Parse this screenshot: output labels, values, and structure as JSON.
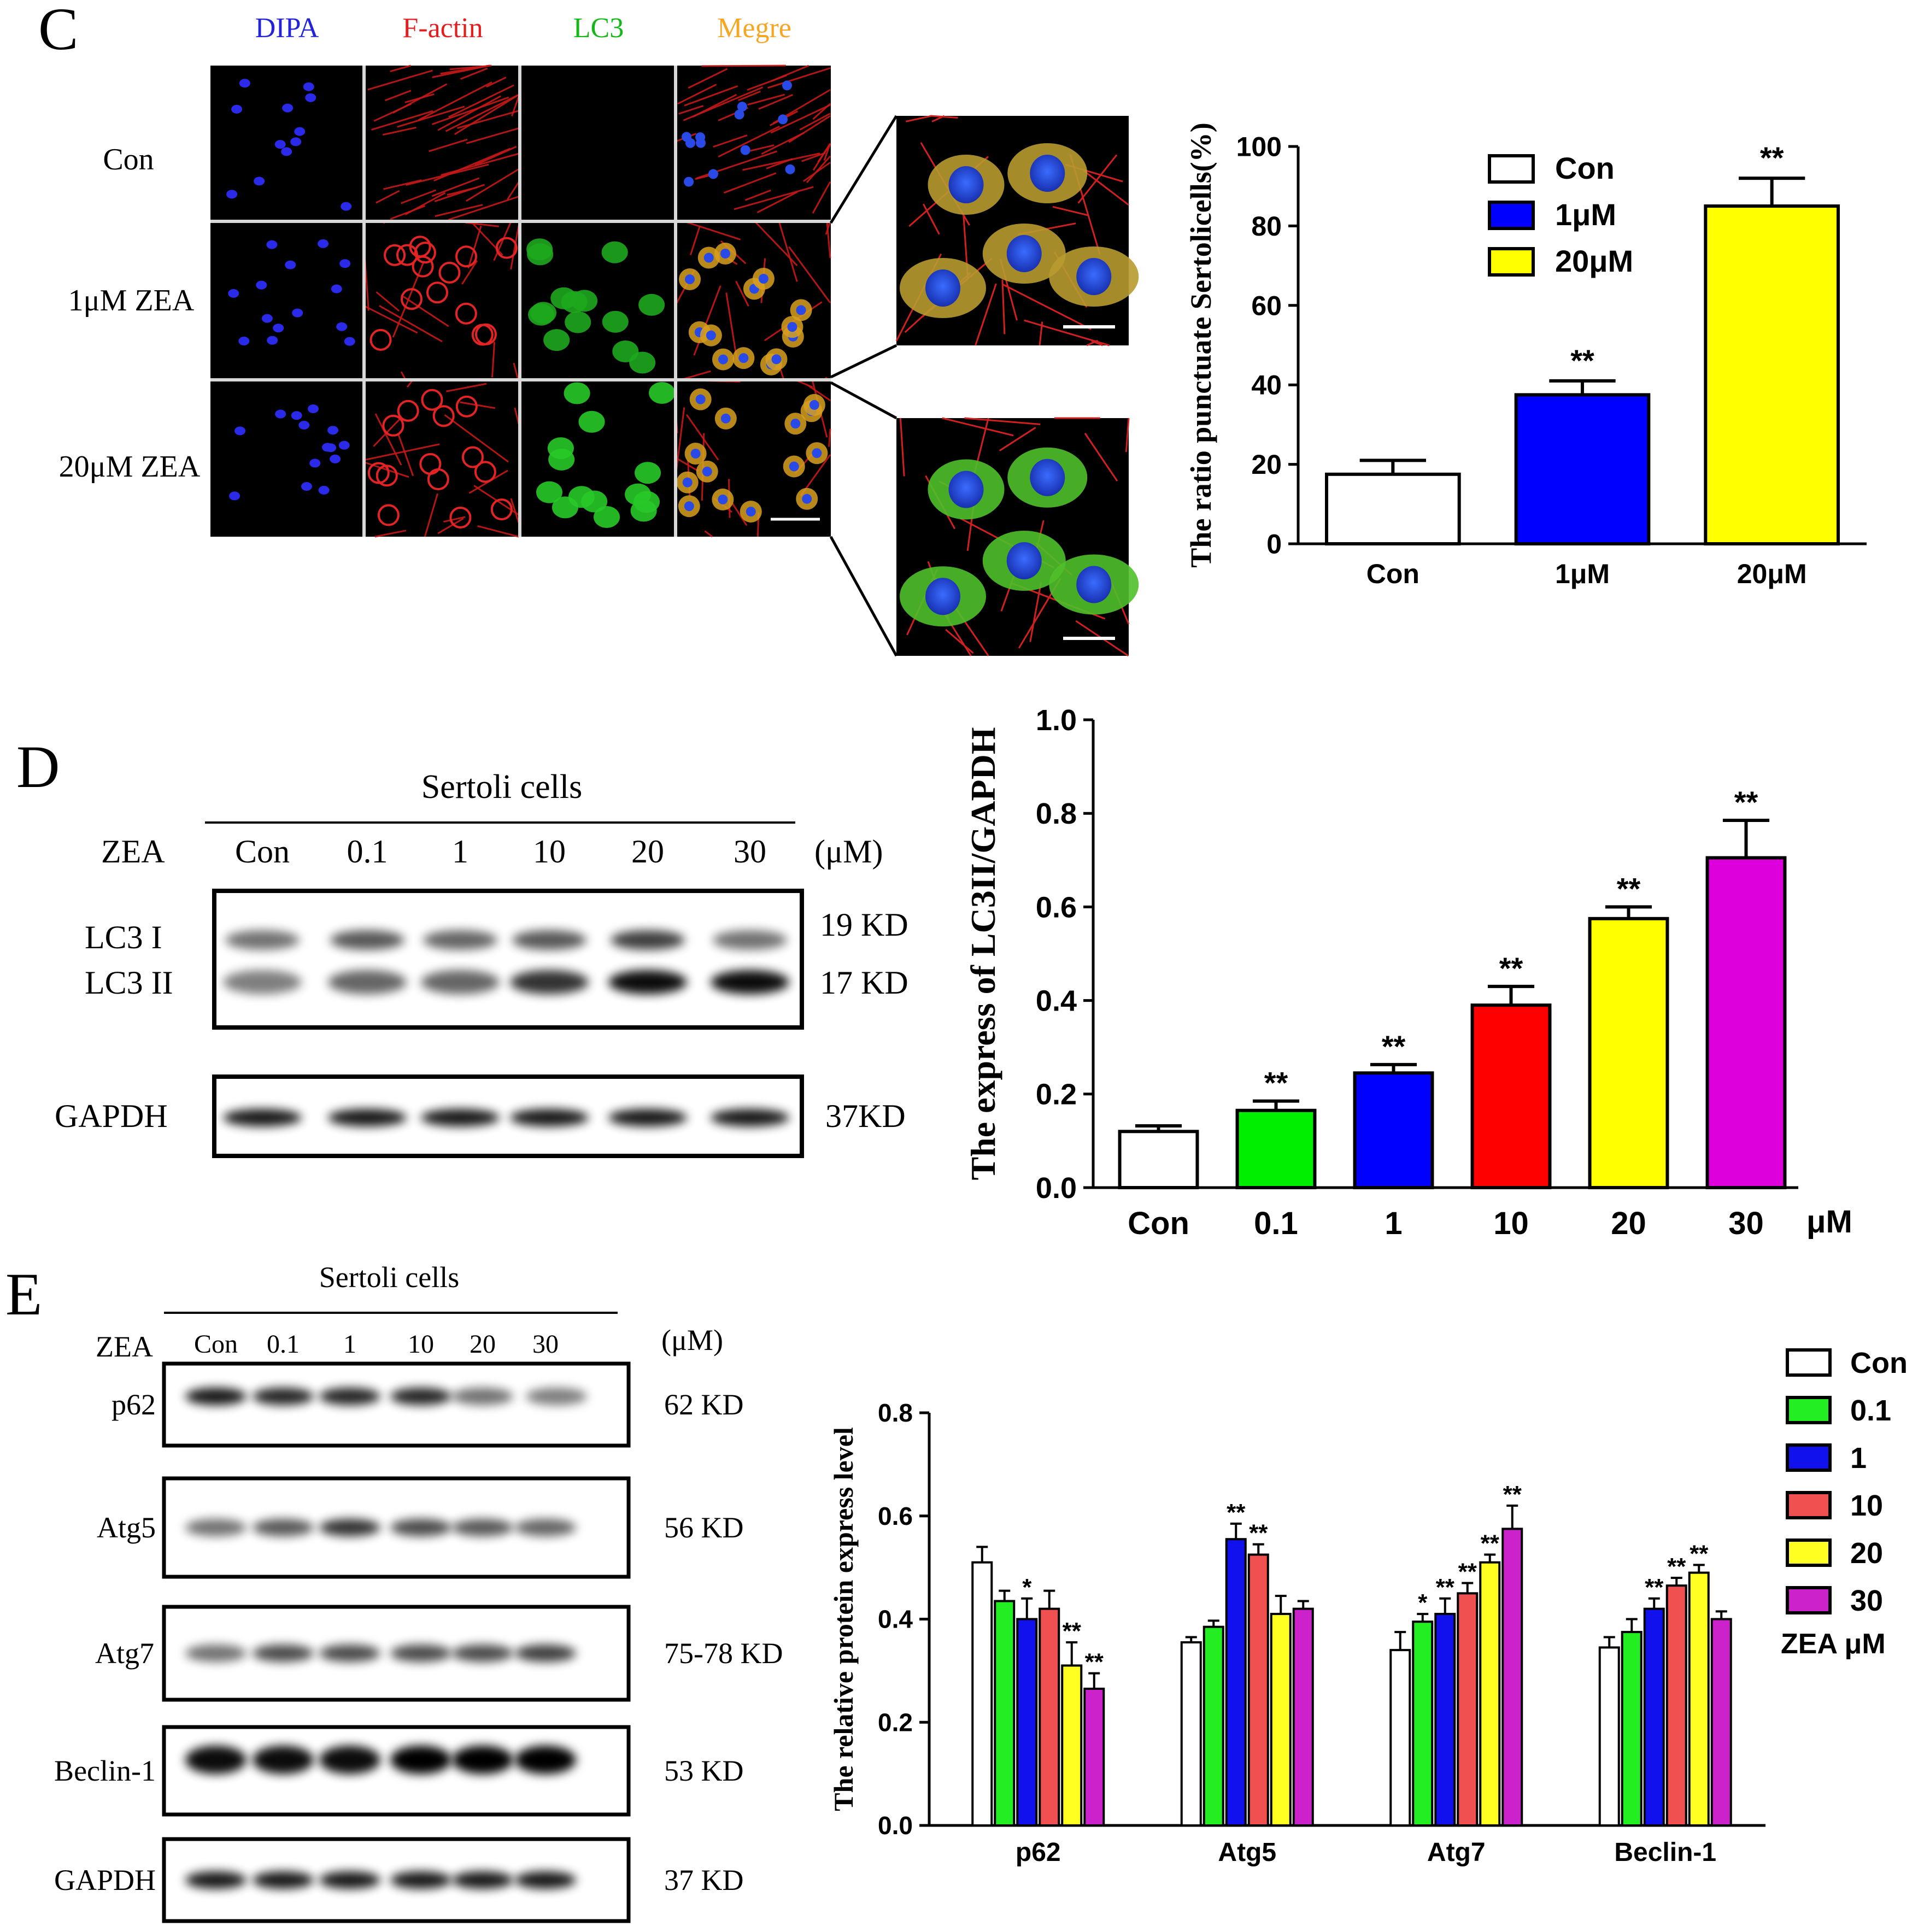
{
  "panel_c": {
    "letter": "C",
    "channels": [
      {
        "label": "DIPA",
        "color": "#2323d8"
      },
      {
        "label": "F-actin",
        "color": "#e02020"
      },
      {
        "label": "LC3",
        "color": "#14b814"
      },
      {
        "label": "Megre",
        "color": "#f5a623"
      }
    ],
    "rows": [
      "Con",
      "1μM ZEA",
      "20μM ZEA"
    ]
  },
  "panel_d": {
    "letter": "D",
    "header": "Sertoli cells",
    "zea_label": "ZEA",
    "lanes": [
      "Con",
      "0.1",
      "1",
      "10",
      "20",
      "30"
    ],
    "unit": "(μM)",
    "bands": [
      {
        "top": "LC3 I",
        "bottom": "LC3 II",
        "size_top": "19 KD",
        "size_bottom": "17 KD"
      },
      {
        "label": "GAPDH",
        "size": "37KD"
      }
    ]
  },
  "panel_e": {
    "letter": "E",
    "header": "Sertoli cells",
    "zea_label": "ZEA",
    "lanes": [
      "Con",
      "0.1",
      "1",
      "10",
      "20",
      "30"
    ],
    "unit": "(μM)",
    "blots": [
      {
        "label": "p62",
        "size": "62 KD"
      },
      {
        "label": "Atg5",
        "size": "56 KD"
      },
      {
        "label": "Atg7",
        "size": "75-78 KD"
      },
      {
        "label": "Beclin-1",
        "size": "53 KD"
      },
      {
        "label": "GAPDH",
        "size": "37 KD"
      }
    ]
  },
  "chart_data": [
    {
      "id": "C",
      "type": "bar",
      "categories": [
        "Con",
        "1μM",
        "20μM"
      ],
      "values": [
        17.5,
        37.5,
        85
      ],
      "errors": [
        3.5,
        3.5,
        7
      ],
      "significance": [
        "",
        "**",
        "**"
      ],
      "colors": [
        "#ffffff",
        "#0000ff",
        "#ffff00"
      ],
      "legend": [
        "Con",
        "1μM",
        "20μM"
      ],
      "legend_position": "top-left",
      "ylabel": "The ratio punctuate Sertolicells(%)",
      "xlabel": "",
      "ylim": [
        0,
        100
      ],
      "yticks": [
        "0",
        "20",
        "40",
        "60",
        "80",
        "100"
      ]
    },
    {
      "id": "D",
      "type": "bar",
      "categories": [
        "Con",
        "0.1",
        "1",
        "10",
        "20",
        "30"
      ],
      "values": [
        0.12,
        0.165,
        0.245,
        0.39,
        0.575,
        0.705
      ],
      "errors": [
        0.012,
        0.02,
        0.018,
        0.04,
        0.025,
        0.08
      ],
      "significance": [
        "",
        "**",
        "**",
        "**",
        "**",
        "**"
      ],
      "colors": [
        "#ffffff",
        "#00ee00",
        "#0000ff",
        "#ff0000",
        "#ffff00",
        "#dd00dd"
      ],
      "ylabel": "The express of LC3II/GAPDH",
      "xlabel": "μM",
      "ylim": [
        0,
        1.0
      ],
      "yticks": [
        "0.0",
        "0.2",
        "0.4",
        "0.6",
        "0.8",
        "1.0"
      ]
    },
    {
      "id": "E",
      "type": "bar",
      "categories": [
        "p62",
        "Atg5",
        "Atg7",
        "Beclin-1"
      ],
      "series": [
        {
          "name": "Con",
          "color": "#ffffff",
          "values": [
            0.51,
            0.355,
            0.34,
            0.345
          ],
          "errors": [
            0.03,
            0.01,
            0.035,
            0.02
          ],
          "significance": [
            "",
            "",
            "",
            ""
          ]
        },
        {
          "name": "0.1",
          "color": "#22ee22",
          "values": [
            0.435,
            0.385,
            0.395,
            0.375
          ],
          "errors": [
            0.02,
            0.012,
            0.015,
            0.025
          ],
          "significance": [
            "",
            "",
            "*",
            ""
          ]
        },
        {
          "name": "1",
          "color": "#1111ee",
          "values": [
            0.4,
            0.555,
            0.41,
            0.42
          ],
          "errors": [
            0.04,
            0.03,
            0.03,
            0.02
          ],
          "significance": [
            "*",
            "**",
            "**",
            "**"
          ]
        },
        {
          "name": "10",
          "color": "#f05050",
          "values": [
            0.42,
            0.525,
            0.45,
            0.465
          ],
          "errors": [
            0.035,
            0.02,
            0.02,
            0.015
          ],
          "significance": [
            "",
            "**",
            "**",
            "**"
          ]
        },
        {
          "name": "20",
          "color": "#ffff22",
          "values": [
            0.31,
            0.41,
            0.51,
            0.49
          ],
          "errors": [
            0.045,
            0.035,
            0.015,
            0.015
          ],
          "significance": [
            "**",
            "",
            "**",
            "**"
          ]
        },
        {
          "name": "30",
          "color": "#cc22cc",
          "values": [
            0.265,
            0.42,
            0.575,
            0.4
          ],
          "errors": [
            0.03,
            0.015,
            0.045,
            0.015
          ],
          "significance": [
            "**",
            "",
            "**",
            ""
          ]
        }
      ],
      "legend": [
        "Con",
        "0.1",
        "1",
        "10",
        "20",
        "30"
      ],
      "legend_title": "ZEA μM",
      "legend_position": "top-right",
      "ylabel": "The relative protein express level",
      "xlabel": "",
      "ylim": [
        0,
        0.8
      ],
      "yticks": [
        "0.0",
        "0.2",
        "0.4",
        "0.6",
        "0.8"
      ]
    }
  ]
}
